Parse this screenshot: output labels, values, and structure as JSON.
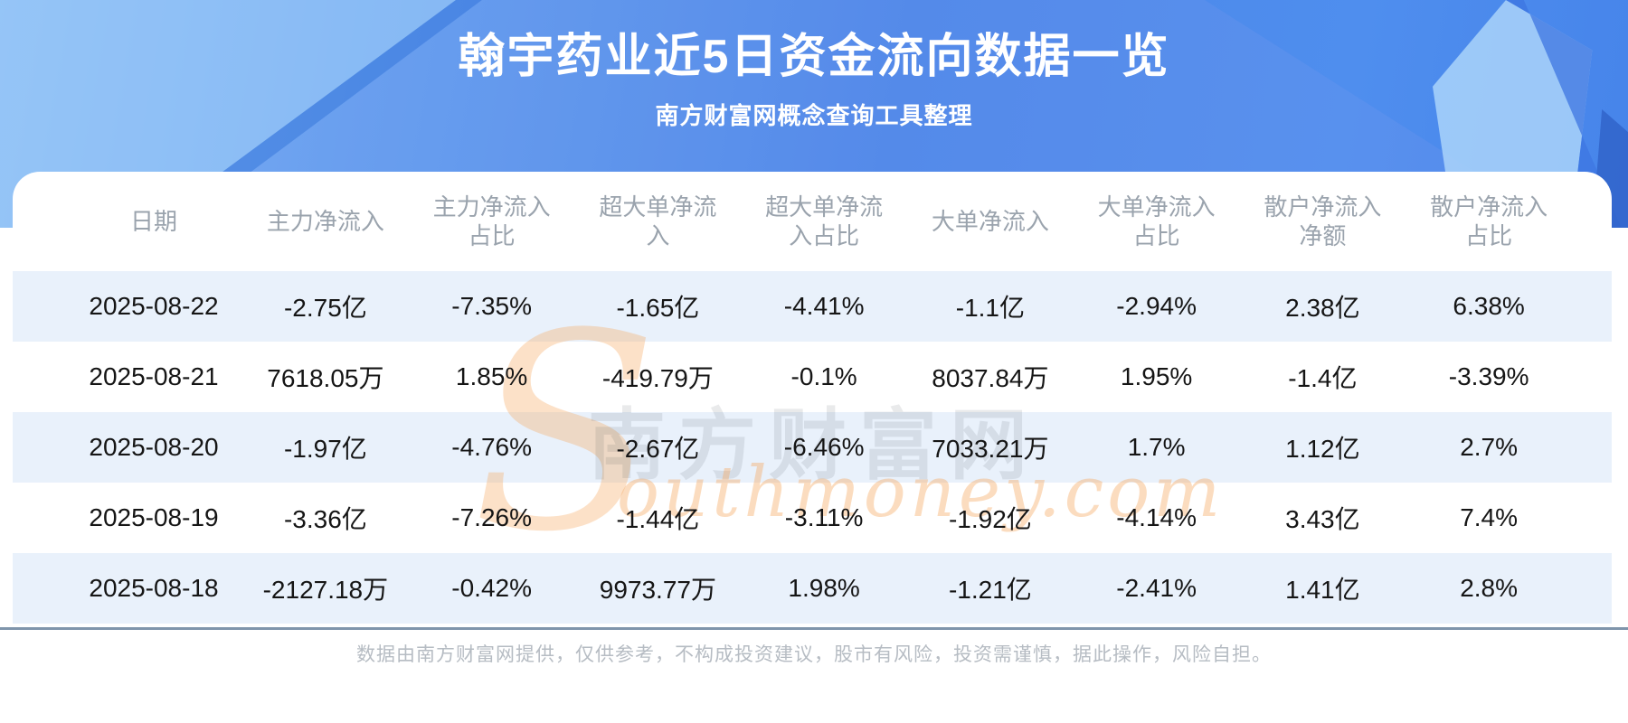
{
  "page": {
    "title": "翰宇药业近5日资金流向数据一览",
    "subtitle": "南方财富网概念查询工具整理",
    "disclaimer": "数据由南方财富网提供，仅供参考，不构成投资建议，股市有风险，投资需谨慎，据此操作，风险自担。"
  },
  "watermark": {
    "initial": "S",
    "latin": "outhmoney.com",
    "cjk": "南方财富网"
  },
  "table": {
    "headers_display": [
      "日期",
      "主力净流入",
      "主力净流入\n占比",
      "超大单净流\n入",
      "超大单净流\n入占比",
      "大单净流入",
      "大单净流入\n占比",
      "散户净流入\n净额",
      "散户净流入\n占比"
    ]
  },
  "chart_data": {
    "type": "table",
    "title": "翰宇药业近5日资金流向数据一览",
    "subtitle": "南方财富网概念查询工具整理",
    "columns": [
      "日期",
      "主力净流入",
      "主力净流入占比",
      "超大单净流入",
      "超大单净流入占比",
      "大单净流入",
      "大单净流入占比",
      "散户净流入净额",
      "散户净流入占比"
    ],
    "rows": [
      [
        "2025-08-22",
        "-2.75亿",
        "-7.35%",
        "-1.65亿",
        "-4.41%",
        "-1.1亿",
        "-2.94%",
        "2.38亿",
        "6.38%"
      ],
      [
        "2025-08-21",
        "7618.05万",
        "1.85%",
        "-419.79万",
        "-0.1%",
        "8037.84万",
        "1.95%",
        "-1.4亿",
        "-3.39%"
      ],
      [
        "2025-08-20",
        "-1.97亿",
        "-4.76%",
        "-2.67亿",
        "-6.46%",
        "7033.21万",
        "1.7%",
        "1.12亿",
        "2.7%"
      ],
      [
        "2025-08-19",
        "-3.36亿",
        "-7.26%",
        "-1.44亿",
        "-3.11%",
        "-1.92亿",
        "-4.14%",
        "3.43亿",
        "7.4%"
      ],
      [
        "2025-08-18",
        "-2127.18万",
        "-0.42%",
        "9973.77万",
        "1.98%",
        "-1.21亿",
        "-2.41%",
        "1.41亿",
        "2.8%"
      ]
    ]
  },
  "colors": {
    "band_blue": "#4a86e8",
    "band_light_blue": "#a8d2fa",
    "row_stripe": "#e9f1fb",
    "divider": "#7f95ab",
    "header_text": "#9aa3ad",
    "cell_text": "#151515",
    "footer_text": "#b6bcc3",
    "watermark_orange": "#f5a85e",
    "title_text": "#ffffff"
  }
}
